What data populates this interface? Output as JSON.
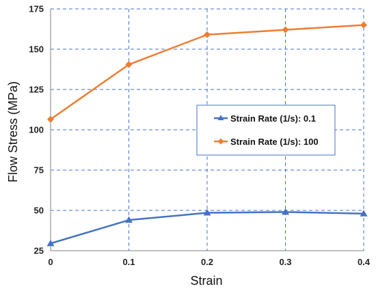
{
  "chart_data": {
    "type": "line",
    "title": "",
    "xlabel": "Strain",
    "ylabel": "Flow Stress (MPa)",
    "xlim": [
      0,
      0.4
    ],
    "ylim": [
      25,
      175
    ],
    "x_ticks": [
      "0",
      "0.1",
      "0.2",
      "0.3",
      "0.4"
    ],
    "y_ticks": [
      "25",
      "50",
      "75",
      "100",
      "125",
      "150",
      "175"
    ],
    "grid": true,
    "legend_placement": "center-right",
    "series": [
      {
        "name": "Strain Rate (1/s): 0.1",
        "color": "#4472C4",
        "marker": "triangle",
        "x": [
          0,
          0.1,
          0.2,
          0.3,
          0.4
        ],
        "values": [
          29.5,
          44,
          48.5,
          49,
          48
        ]
      },
      {
        "name": "Strain Rate (1/s): 100",
        "color": "#ED7D31",
        "marker": "diamond",
        "x": [
          0,
          0.1,
          0.2,
          0.3,
          0.4
        ],
        "values": [
          106.5,
          140.5,
          159,
          162,
          165
        ]
      }
    ]
  }
}
